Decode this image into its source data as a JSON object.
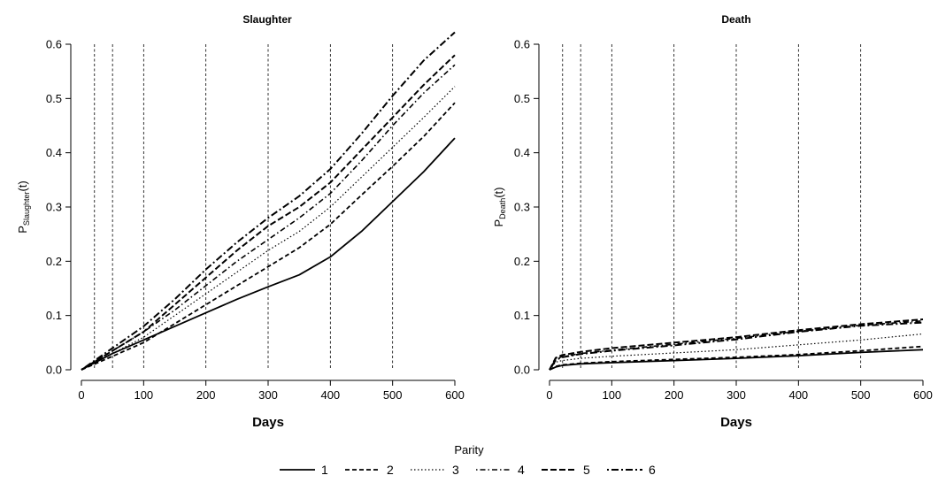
{
  "chart_data": [
    {
      "type": "line",
      "title": "Slaughter",
      "xlabel": "Days",
      "ylabel": {
        "main": "P",
        "sub": "Slaughter",
        "suffix": "(t)"
      },
      "xlim": [
        0,
        600
      ],
      "ylim": [
        0,
        0.6
      ],
      "xticks": [
        0,
        100,
        200,
        300,
        400,
        500,
        600
      ],
      "yticks": [
        0.0,
        0.1,
        0.2,
        0.3,
        0.4,
        0.5,
        0.6
      ],
      "ytick_labels": [
        "0.0",
        "0.1",
        "0.2",
        "0.3",
        "0.4",
        "0.5",
        "0.6"
      ],
      "vlines": [
        21,
        50,
        100,
        200,
        300,
        400,
        500
      ],
      "grid": false,
      "series": [
        {
          "name": "1",
          "x": [
            0,
            50,
            100,
            150,
            200,
            250,
            300,
            350,
            400,
            450,
            500,
            550,
            600
          ],
          "values": [
            0,
            0.03,
            0.055,
            0.08,
            0.105,
            0.13,
            0.153,
            0.175,
            0.208,
            0.255,
            0.31,
            0.365,
            0.427
          ]
        },
        {
          "name": "2",
          "x": [
            0,
            50,
            100,
            150,
            200,
            250,
            300,
            350,
            400,
            450,
            500,
            550,
            600
          ],
          "values": [
            0,
            0.025,
            0.05,
            0.085,
            0.12,
            0.155,
            0.19,
            0.225,
            0.268,
            0.322,
            0.375,
            0.43,
            0.492
          ]
        },
        {
          "name": "3",
          "x": [
            0,
            50,
            100,
            150,
            200,
            250,
            300,
            350,
            400,
            450,
            500,
            550,
            600
          ],
          "values": [
            0,
            0.03,
            0.06,
            0.1,
            0.14,
            0.18,
            0.22,
            0.255,
            0.3,
            0.355,
            0.41,
            0.465,
            0.522
          ]
        },
        {
          "name": "4",
          "x": [
            0,
            50,
            100,
            150,
            200,
            250,
            300,
            350,
            400,
            450,
            500,
            550,
            600
          ],
          "values": [
            0,
            0.035,
            0.07,
            0.11,
            0.155,
            0.2,
            0.24,
            0.28,
            0.325,
            0.385,
            0.45,
            0.51,
            0.562
          ]
        },
        {
          "name": "5",
          "x": [
            0,
            50,
            100,
            150,
            200,
            250,
            300,
            350,
            400,
            450,
            500,
            550,
            600
          ],
          "values": [
            0,
            0.035,
            0.07,
            0.12,
            0.17,
            0.22,
            0.265,
            0.3,
            0.345,
            0.405,
            0.465,
            0.525,
            0.58
          ]
        },
        {
          "name": "6",
          "x": [
            0,
            50,
            100,
            150,
            200,
            250,
            300,
            350,
            400,
            450,
            500,
            550,
            600
          ],
          "values": [
            0,
            0.04,
            0.08,
            0.13,
            0.185,
            0.235,
            0.28,
            0.32,
            0.37,
            0.435,
            0.505,
            0.57,
            0.622
          ]
        }
      ]
    },
    {
      "type": "line",
      "title": "Death",
      "xlabel": "Days",
      "ylabel": {
        "main": "P",
        "sub": "Death",
        "suffix": "(t)"
      },
      "xlim": [
        0,
        600
      ],
      "ylim": [
        0,
        0.6
      ],
      "xticks": [
        0,
        100,
        200,
        300,
        400,
        500,
        600
      ],
      "yticks": [
        0.0,
        0.1,
        0.2,
        0.3,
        0.4,
        0.5,
        0.6
      ],
      "ytick_labels": [
        "0.0",
        "0.1",
        "0.2",
        "0.3",
        "0.4",
        "0.5",
        "0.6"
      ],
      "vlines": [
        21,
        50,
        100,
        200,
        300,
        400,
        500
      ],
      "grid": false,
      "series": [
        {
          "name": "1",
          "x": [
            0,
            10,
            20,
            50,
            100,
            200,
            300,
            400,
            500,
            600
          ],
          "values": [
            0,
            0.005,
            0.008,
            0.011,
            0.013,
            0.017,
            0.021,
            0.026,
            0.032,
            0.037
          ]
        },
        {
          "name": "2",
          "x": [
            0,
            10,
            20,
            50,
            100,
            200,
            300,
            400,
            500,
            600
          ],
          "values": [
            0,
            0.006,
            0.009,
            0.012,
            0.015,
            0.019,
            0.023,
            0.028,
            0.035,
            0.043
          ]
        },
        {
          "name": "3",
          "x": [
            0,
            10,
            20,
            50,
            100,
            200,
            300,
            400,
            500,
            600
          ],
          "values": [
            0,
            0.014,
            0.017,
            0.021,
            0.025,
            0.031,
            0.037,
            0.046,
            0.055,
            0.066
          ]
        },
        {
          "name": "4",
          "x": [
            0,
            10,
            20,
            50,
            100,
            200,
            300,
            400,
            500,
            600
          ],
          "values": [
            0,
            0.02,
            0.024,
            0.03,
            0.036,
            0.047,
            0.058,
            0.071,
            0.082,
            0.09
          ]
        },
        {
          "name": "5",
          "x": [
            0,
            10,
            20,
            50,
            100,
            200,
            300,
            400,
            500,
            600
          ],
          "values": [
            0,
            0.022,
            0.027,
            0.033,
            0.04,
            0.05,
            0.06,
            0.073,
            0.084,
            0.093
          ]
        },
        {
          "name": "6",
          "x": [
            0,
            10,
            20,
            50,
            100,
            200,
            300,
            400,
            500,
            600
          ],
          "values": [
            0,
            0.018,
            0.023,
            0.029,
            0.035,
            0.045,
            0.056,
            0.07,
            0.081,
            0.087
          ]
        }
      ]
    }
  ],
  "legend": {
    "title": "Parity",
    "placement": "bottom",
    "items": [
      "1",
      "2",
      "3",
      "4",
      "5",
      "6"
    ]
  }
}
